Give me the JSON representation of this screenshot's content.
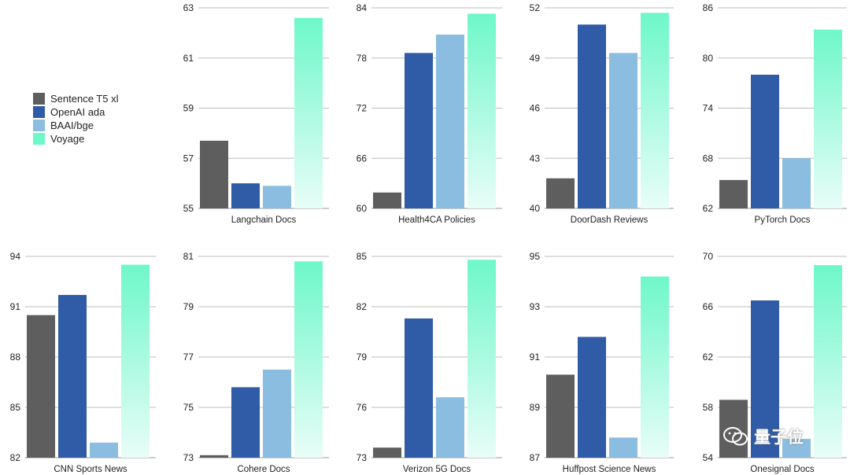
{
  "legend": [
    {
      "name": "Sentence T5 xl",
      "color": "#5e5e5e"
    },
    {
      "name": "OpenAI ada",
      "color": "#2f5ba7"
    },
    {
      "name": "BAAI/bge",
      "color": "#8abde0"
    },
    {
      "name": "Voyage",
      "color": "#6ef7c9"
    }
  ],
  "watermark": "量子位",
  "chart_data": [
    {
      "type": "bar",
      "xlabel": "Langchain Docs",
      "ylim": [
        55,
        63
      ],
      "yticks": [
        55,
        57,
        59,
        61,
        63
      ],
      "series": [
        "Sentence T5 xl",
        "OpenAI ada",
        "BAAI/bge",
        "Voyage"
      ],
      "values": [
        57.7,
        56.0,
        55.9,
        62.6
      ]
    },
    {
      "type": "bar",
      "xlabel": "Health4CA Policies",
      "ylim": [
        60,
        84
      ],
      "yticks": [
        60,
        66,
        72,
        78,
        84
      ],
      "series": [
        "Sentence T5 xl",
        "OpenAI ada",
        "BAAI/bge",
        "Voyage"
      ],
      "values": [
        61.9,
        78.6,
        80.8,
        83.3
      ]
    },
    {
      "type": "bar",
      "xlabel": "DoorDash Reviews",
      "ylim": [
        40,
        52
      ],
      "yticks": [
        40,
        43,
        46,
        49,
        52
      ],
      "series": [
        "Sentence T5 xl",
        "OpenAI ada",
        "BAAI/bge",
        "Voyage"
      ],
      "values": [
        41.8,
        51.0,
        49.3,
        51.7
      ]
    },
    {
      "type": "bar",
      "xlabel": "PyTorch Docs",
      "ylim": [
        62,
        86
      ],
      "yticks": [
        62,
        68,
        74,
        80,
        86
      ],
      "series": [
        "Sentence T5 xl",
        "OpenAI ada",
        "BAAI/bge",
        "Voyage"
      ],
      "values": [
        65.4,
        78.0,
        68.0,
        83.4
      ]
    },
    {
      "type": "bar",
      "xlabel": "CNN Sports News",
      "ylim": [
        82,
        94
      ],
      "yticks": [
        82,
        85,
        88,
        91,
        94
      ],
      "series": [
        "Sentence T5 xl",
        "OpenAI ada",
        "BAAI/bge",
        "Voyage"
      ],
      "values": [
        90.5,
        91.7,
        82.9,
        93.5
      ]
    },
    {
      "type": "bar",
      "xlabel": "Cohere Docs",
      "ylim": [
        73,
        81
      ],
      "yticks": [
        73,
        75,
        77,
        79,
        81
      ],
      "series": [
        "Sentence T5 xl",
        "OpenAI ada",
        "BAAI/bge",
        "Voyage"
      ],
      "values": [
        73.1,
        75.8,
        76.5,
        80.8
      ]
    },
    {
      "type": "bar",
      "xlabel": "Verizon 5G Docs",
      "ylim": [
        73,
        85
      ],
      "yticks": [
        73,
        76,
        79,
        82,
        85
      ],
      "series": [
        "Sentence T5 xl",
        "OpenAI ada",
        "BAAI/bge",
        "Voyage"
      ],
      "values": [
        73.6,
        81.3,
        76.6,
        84.8
      ]
    },
    {
      "type": "bar",
      "xlabel": "Huffpost Science News",
      "ylim": [
        87,
        95
      ],
      "yticks": [
        87,
        89,
        91,
        93,
        95
      ],
      "series": [
        "Sentence T5 xl",
        "OpenAI ada",
        "BAAI/bge",
        "Voyage"
      ],
      "values": [
        90.3,
        91.8,
        87.8,
        94.2
      ]
    },
    {
      "type": "bar",
      "xlabel": "Onesignal Docs",
      "ylim": [
        54,
        70
      ],
      "yticks": [
        54,
        58,
        62,
        66,
        70
      ],
      "series": [
        "Sentence T5 xl",
        "OpenAI ada",
        "BAAI/bge",
        "Voyage"
      ],
      "values": [
        58.6,
        66.5,
        55.5,
        69.3
      ]
    }
  ]
}
